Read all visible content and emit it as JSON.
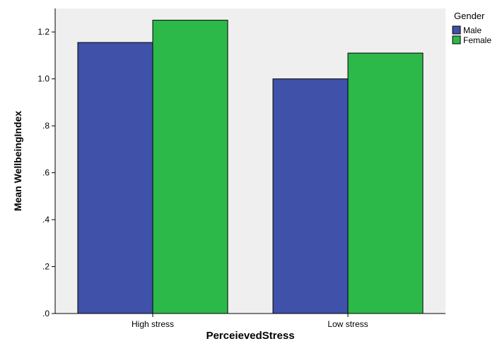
{
  "chart_data": {
    "type": "bar",
    "title": "",
    "xlabel": "PerceievedStress",
    "ylabel": "Mean WellbeingIndex",
    "categories": [
      "High stress",
      "Low stress"
    ],
    "series": [
      {
        "name": "Male",
        "values": [
          1.155,
          1.0
        ],
        "color": "#3f51a8"
      },
      {
        "name": "Female",
        "values": [
          1.25,
          1.11
        ],
        "color": "#2db84a"
      }
    ],
    "ylim": [
      0,
      1.3
    ],
    "yticks": [
      0,
      0.2,
      0.4,
      0.6,
      0.8,
      1.0,
      1.2
    ],
    "ytick_labels": [
      ".0",
      ".2",
      ".4",
      ".6",
      ".8",
      "1.0",
      "1.2"
    ],
    "grid": false,
    "plot_background": "#efefef",
    "legend": {
      "title": "Gender",
      "placement": "top-right, outside plot",
      "entries": [
        "Male",
        "Female"
      ]
    }
  }
}
